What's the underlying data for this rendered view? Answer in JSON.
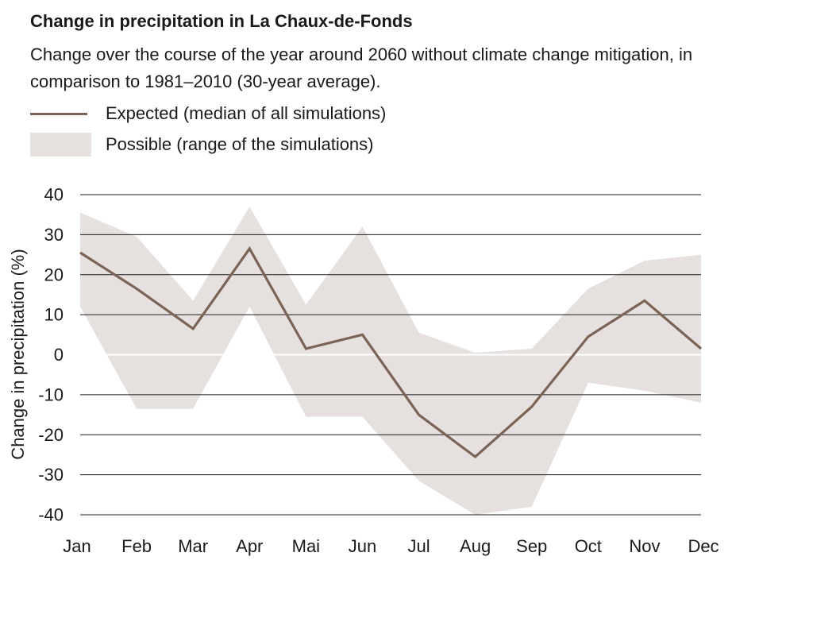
{
  "header": {
    "title": "Change in precipitation in La Chaux-de-Fonds",
    "subtitle": "Change over the course of the year around 2060 without climate change mitigation, in comparison to 1981–2010 (30-year average)."
  },
  "legend": {
    "expected_label": "Expected (median of all simulations)",
    "possible_label": "Possible (range of the simulations)"
  },
  "colors": {
    "median_line": "#7a6457",
    "range_band": "#e6e0df",
    "grid": "#1a1a1a",
    "zero_line": "#ffffff"
  },
  "chart_data": {
    "type": "line",
    "title": "Change in precipitation in La Chaux-de-Fonds",
    "xlabel": "",
    "ylabel": "Change in precipitation (%)",
    "ylim": [
      -40,
      40
    ],
    "yticks": [
      40,
      30,
      20,
      10,
      0,
      -10,
      -20,
      -30,
      -40
    ],
    "ytick_labels": [
      "40",
      "30",
      "20",
      "10",
      "0",
      "-10",
      "-20",
      "-30",
      "-40"
    ],
    "grid": true,
    "categories": [
      "Jan",
      "Feb",
      "Mar",
      "Apr",
      "Mai",
      "Jun",
      "Jul",
      "Aug",
      "Sep",
      "Oct",
      "Nov",
      "Dec"
    ],
    "series": [
      {
        "name": "Expected (median of all simulations)",
        "kind": "line",
        "values": [
          25.5,
          16.5,
          6.5,
          26.5,
          1.5,
          5,
          -15,
          -25.5,
          -13,
          4.5,
          13.5,
          1.5
        ]
      },
      {
        "name": "Possible (range of the simulations)",
        "kind": "band",
        "upper": [
          35.5,
          29.5,
          13.5,
          37,
          12.5,
          32,
          5.5,
          0.5,
          1.5,
          16.5,
          23.5,
          25
        ],
        "lower": [
          12,
          -13.5,
          -13.5,
          12,
          -15.5,
          -15.5,
          -31.5,
          -40,
          -38,
          -7,
          -9,
          -12
        ]
      }
    ]
  }
}
